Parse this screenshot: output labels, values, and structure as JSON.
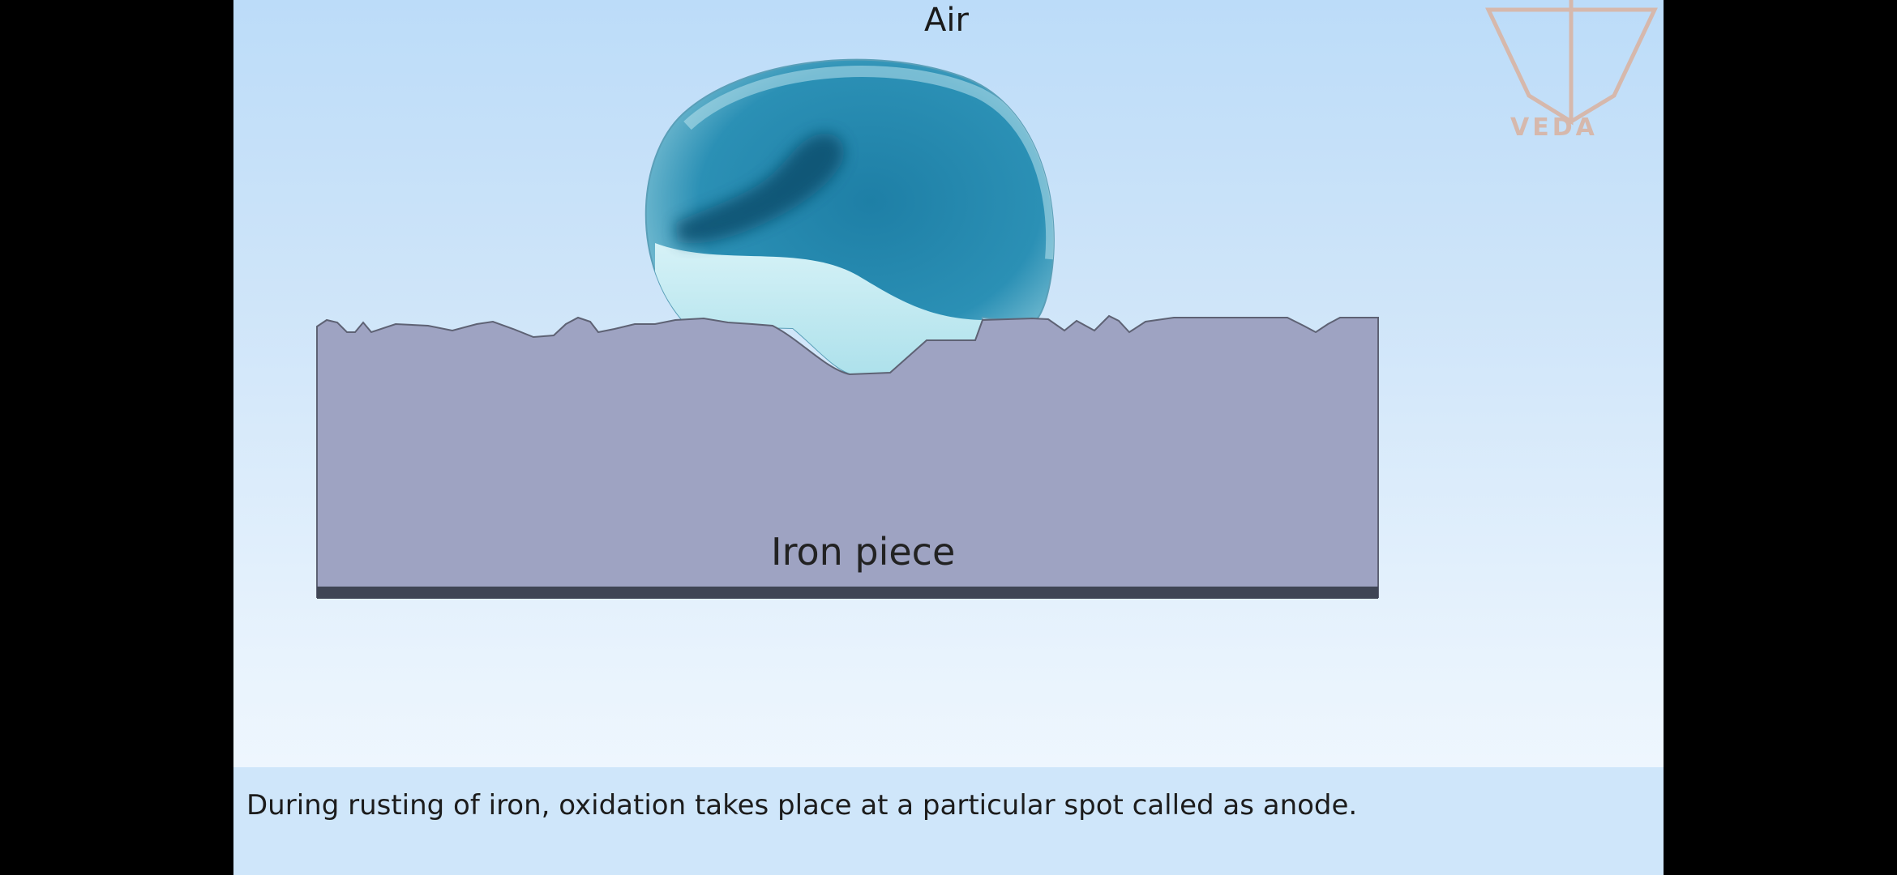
{
  "labels": {
    "air": "Air",
    "iron": "Iron piece"
  },
  "caption": "During rusting of iron, oxidation takes place at a particular spot called as anode.",
  "logo": {
    "text": "VEDA",
    "color": "#d6b8ac"
  },
  "colors": {
    "background_top": "#bcdcf9",
    "iron": "#9ea3c2",
    "iron_base": "#3f4554",
    "water_drop": "#2a8eb2",
    "caption_bar": "#cfe6fa"
  }
}
